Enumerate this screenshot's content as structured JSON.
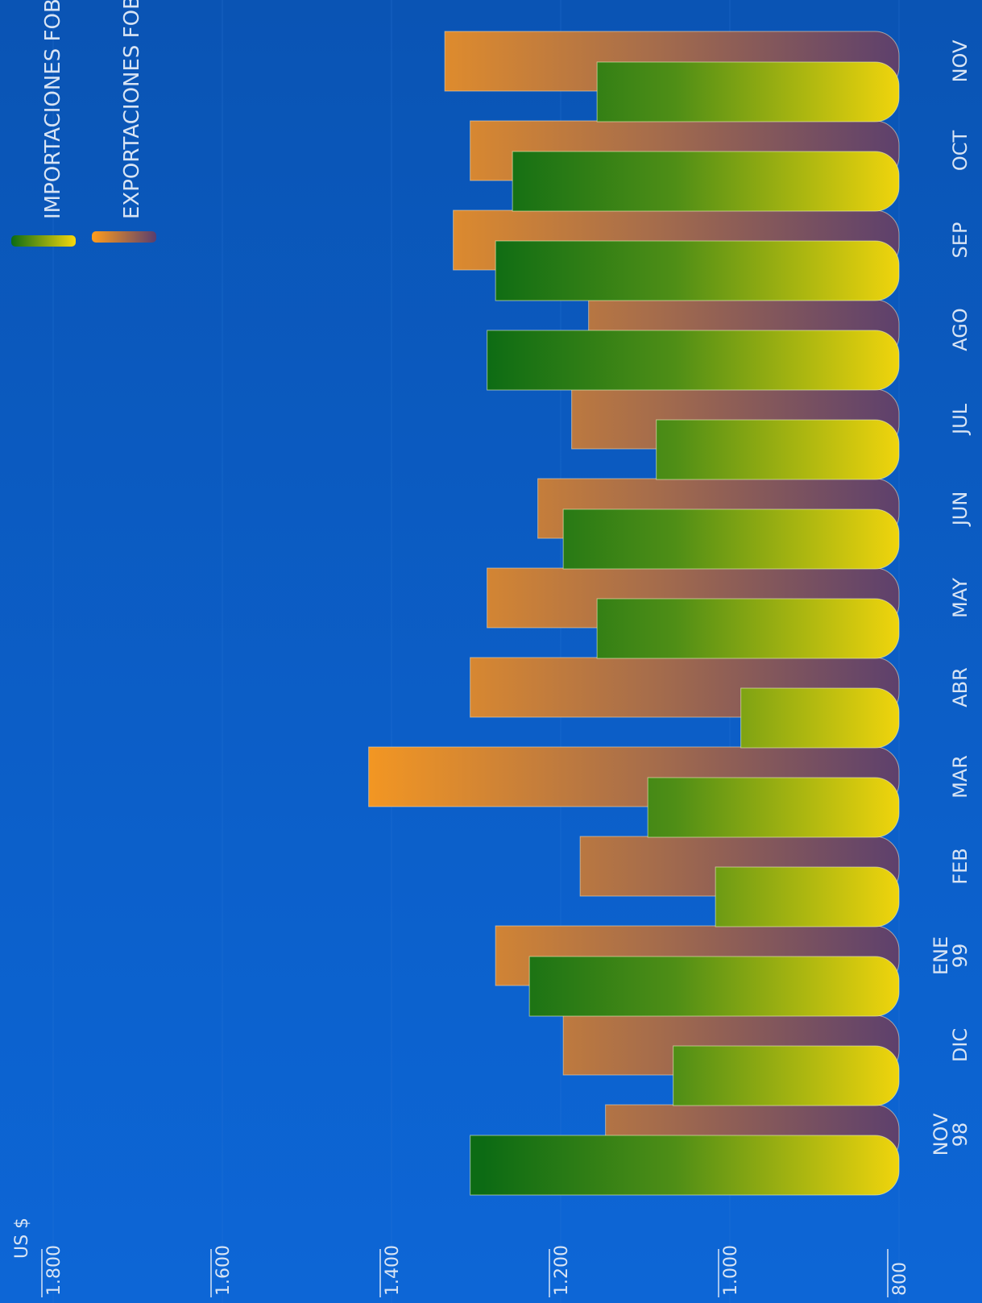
{
  "colors": {
    "background_top": "#0a54b4",
    "background_bottom": "#0d66d6",
    "import_dark": "#0c6b14",
    "import_light": "#f8d80c",
    "export_light": "#ff9d1c",
    "export_dark": "#5a3e6e",
    "text": "#d8e4f4"
  },
  "chart_data": {
    "type": "bar",
    "orientation": "rotated",
    "unit_label": "US $",
    "yticks": [
      "800",
      "1.000",
      "1.200",
      "1.400",
      "1.600",
      "1.800"
    ],
    "ylim": [
      800,
      1800
    ],
    "categories": [
      [
        "NOV",
        "98"
      ],
      [
        "DIC"
      ],
      [
        "ENE",
        "99"
      ],
      [
        "FEB"
      ],
      [
        "MAR"
      ],
      [
        "ABR"
      ],
      [
        "MAY"
      ],
      [
        "JUN"
      ],
      [
        "JUL"
      ],
      [
        "AGO"
      ],
      [
        "SEP"
      ],
      [
        "OCT"
      ],
      [
        "NOV"
      ]
    ],
    "series": [
      {
        "name": "IMPORTACIONES FOB",
        "values": [
          1307,
          1067,
          1237,
          1017,
          1097,
          987,
          1157,
          1197,
          1087,
          1287,
          1277,
          1257,
          1157
        ]
      },
      {
        "name": "EXPORTACIONES FOB",
        "values": [
          1147,
          1197,
          1277,
          1177,
          1427,
          1307,
          1287,
          1227,
          1187,
          1167,
          1327,
          1307,
          1337
        ]
      }
    ],
    "legend_position": "top-right"
  }
}
